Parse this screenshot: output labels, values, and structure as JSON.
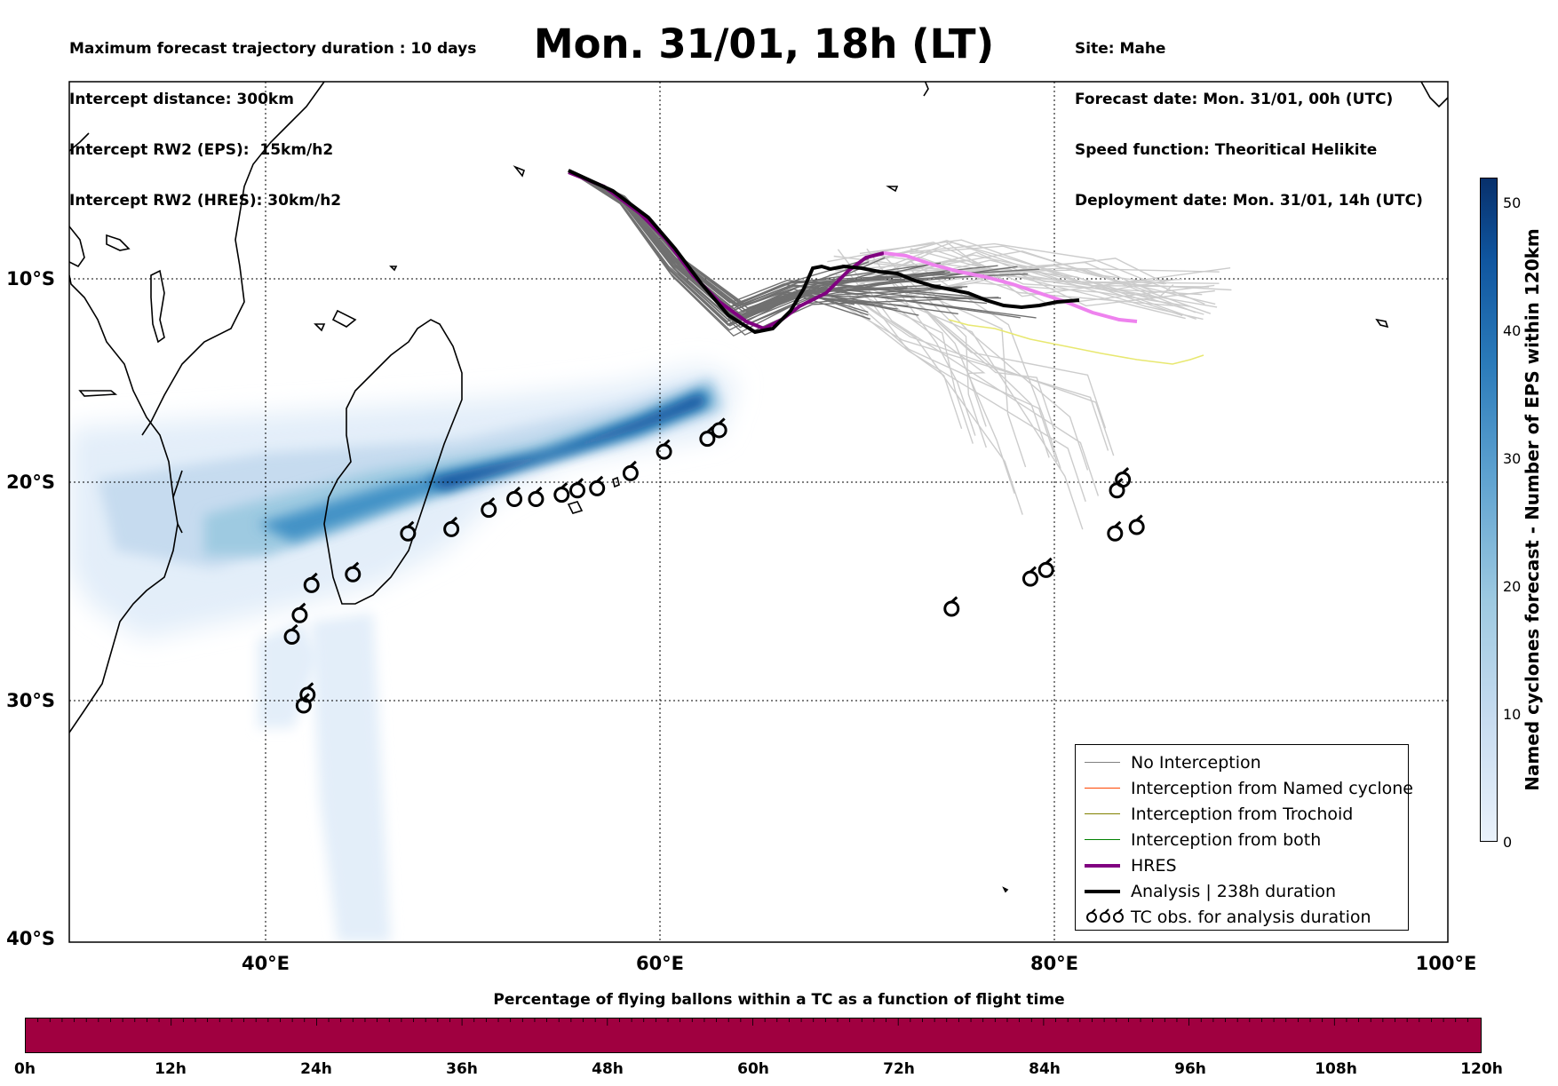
{
  "header": {
    "left_lines": [
      "Maximum forecast trajectory duration : 10 days",
      "Intercept distance: 300km",
      "Intercept RW2 (EPS):  15km/h2",
      "Intercept RW2 (HRES): 30km/h2"
    ],
    "title": "Mon. 31/01, 18h (LT)",
    "right_lines": [
      "Site: Mahe",
      "Forecast date: Mon. 31/01, 00h (UTC)",
      "Speed function: Theoritical Helikite",
      "Deployment date: Mon. 31/01, 14h (UTC)"
    ]
  },
  "map": {
    "lon_range": [
      30,
      100
    ],
    "lat_range": [
      0,
      -40
    ],
    "lat_labels": [
      "10°S",
      "20°S",
      "30°S",
      "40°S"
    ],
    "lon_labels": [
      "40°E",
      "60°E",
      "80°E",
      "100°E"
    ],
    "colors": {
      "no_interception": "#808080",
      "named_cyclone": "#ff4500",
      "trochoid": "#808000",
      "both": "#008000",
      "hres": "#800080",
      "hres_pink": "#ee82ee",
      "analysis": "#000000"
    },
    "tc_obs": [
      [
        63.0,
        -16.2
      ],
      [
        62.4,
        -16.6
      ],
      [
        60.2,
        -17.2
      ],
      [
        58.5,
        -18.2
      ],
      [
        56.8,
        -18.9
      ],
      [
        55.8,
        -19.0
      ],
      [
        55.0,
        -19.2
      ],
      [
        53.7,
        -19.4
      ],
      [
        52.6,
        -19.4
      ],
      [
        51.3,
        -19.9
      ],
      [
        49.4,
        -20.8
      ],
      [
        47.2,
        -21.0
      ],
      [
        44.4,
        -22.9
      ],
      [
        42.3,
        -23.4
      ],
      [
        41.7,
        -24.8
      ],
      [
        41.3,
        -25.8
      ],
      [
        42.1,
        -28.5
      ],
      [
        41.9,
        -29.0
      ],
      [
        83.5,
        -18.5
      ],
      [
        83.2,
        -19.0
      ],
      [
        84.2,
        -20.7
      ],
      [
        83.1,
        -21.0
      ],
      [
        79.6,
        -22.7
      ],
      [
        78.8,
        -23.1
      ],
      [
        74.8,
        -24.5
      ]
    ]
  },
  "legend": {
    "items": [
      {
        "label": "No Interception",
        "color": "#808080",
        "width": 1.5,
        "type": "line"
      },
      {
        "label": "Interception from Named cyclone",
        "color": "#ff4500",
        "width": 1.5,
        "type": "line"
      },
      {
        "label": "Interception from Trochoid",
        "color": "#808000",
        "width": 1.5,
        "type": "line"
      },
      {
        "label": "Interception from both",
        "color": "#008000",
        "width": 1.5,
        "type": "line"
      },
      {
        "label": "HRES",
        "color": "#800080",
        "width": 4,
        "type": "line"
      },
      {
        "label": "Analysis | 238h duration",
        "color": "#000000",
        "width": 4,
        "type": "line"
      },
      {
        "label": "TC obs. for analysis duration",
        "color": "#000000",
        "width": 2,
        "type": "symbol"
      }
    ],
    "symbol_glyph": "ʛʛʛ"
  },
  "colorbar": {
    "label": "Named cyclones forecast - Number of EPS within 120km",
    "ticks": [
      "0",
      "10",
      "20",
      "30",
      "40",
      "50"
    ],
    "range": [
      0,
      52
    ]
  },
  "bottom": {
    "title": "Percentage of flying ballons within a TC as a function of flight time",
    "labels": [
      "0h",
      "12h",
      "24h",
      "36h",
      "48h",
      "60h",
      "72h",
      "84h",
      "96h",
      "108h",
      "120h"
    ],
    "bar_color": "#a00040"
  }
}
